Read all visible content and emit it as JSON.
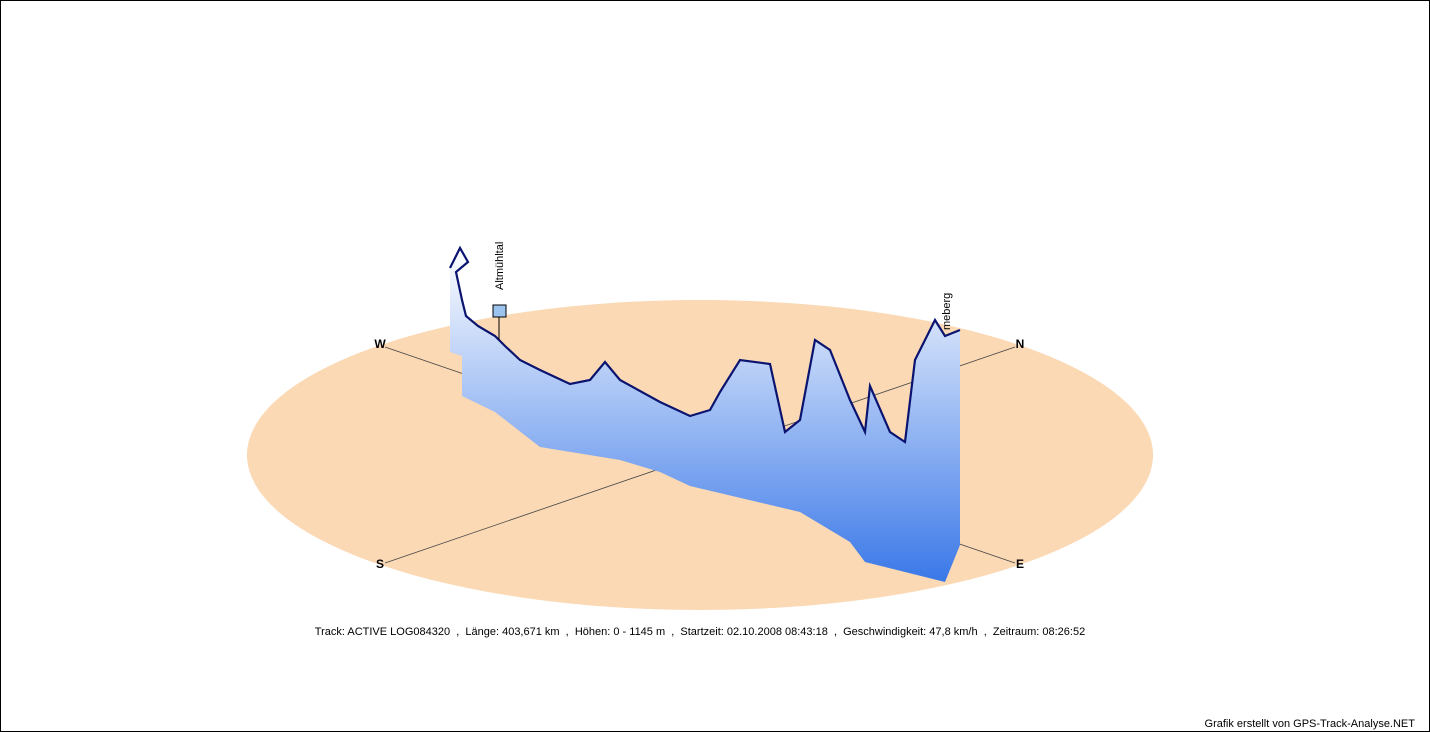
{
  "compass": {
    "west": "W",
    "north": "N",
    "south": "S",
    "east": "E"
  },
  "waypoints": [
    "Altmühltal",
    "meberg"
  ],
  "info": "Track: ACTIVE LOG084320  ,  Länge: 403,671 km  ,  Höhen: 0 - 1145 m  ,  Startzeit: 02.10.2008 08:43:18  ,  Geschwindigkeit: 47,8 km/h  ,  Zeitraum: 08:26:52",
  "footer": "Grafik erstellt von GPS-Track-Analyse.NET"
}
